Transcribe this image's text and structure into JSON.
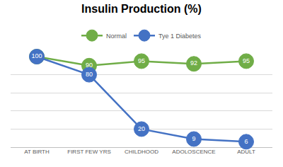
{
  "chart_data": {
    "type": "line",
    "title": "Insulin Production (%)",
    "categories": [
      "AT BIRTH",
      "FIRST FEW YRS",
      "CHILDHOOD",
      "ADOLOSCENCE",
      "ADULT"
    ],
    "series": [
      {
        "name": "Normal",
        "color": "#70ad47",
        "values": [
          100,
          90,
          95,
          92,
          95
        ]
      },
      {
        "name": "Tye 1 Diabetes",
        "color": "#4472c4",
        "values": [
          100,
          80,
          20,
          9,
          6
        ]
      }
    ],
    "ylim": [
      0,
      100
    ],
    "yticks": [
      0,
      20,
      40,
      60,
      80,
      100
    ],
    "grid": true,
    "legend": "top",
    "data_labels": true,
    "tick_labels": "x",
    "marker": "circle"
  }
}
